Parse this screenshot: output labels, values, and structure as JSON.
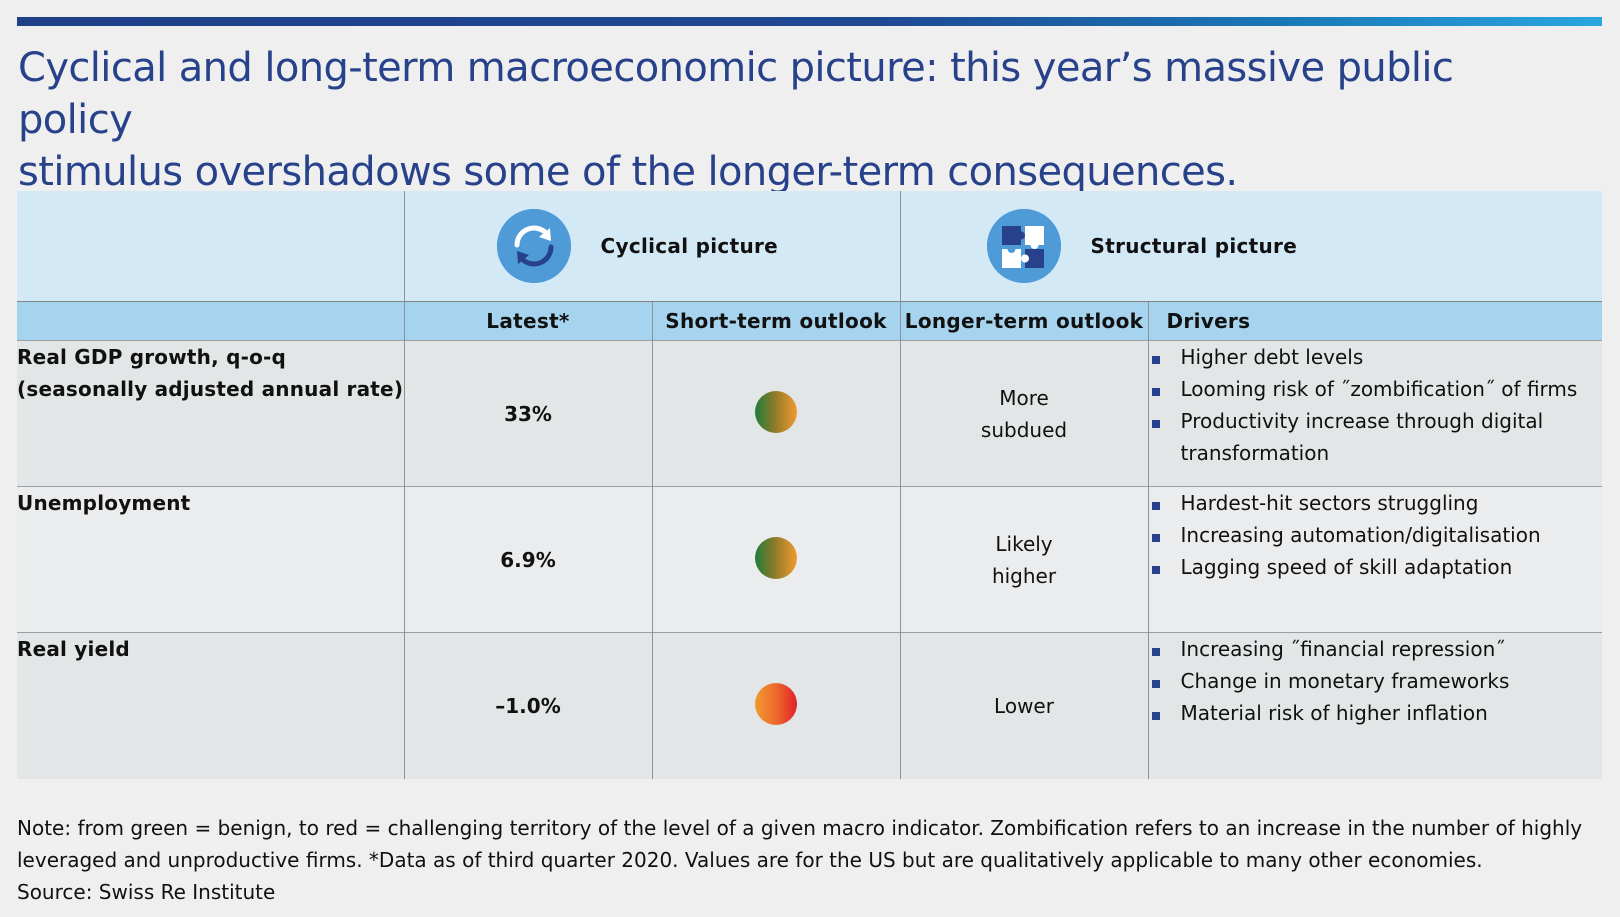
{
  "title_line1": "Cyclical and long-term macroeconomic picture: this year’s massive public policy",
  "title_line2": "stimulus overshadows some of the longer-term consequences.",
  "groups": {
    "cyclical": {
      "label": "Cyclical picture",
      "icon": "refresh-cycle-icon"
    },
    "structural": {
      "label": "Structural picture",
      "icon": "puzzle-pieces-icon"
    }
  },
  "columns": {
    "latest": "Latest*",
    "short_term": "Short-term outlook",
    "longer_term": "Longer-term outlook",
    "drivers": "Drivers"
  },
  "rows": [
    {
      "indicator_line1": "Real GDP growth, q-o-q",
      "indicator_line2": "(seasonally adjusted annual rate)",
      "latest": "33%",
      "short_term_color": "green-to-orange",
      "longer_line1": "More",
      "longer_line2": "subdued",
      "drivers": [
        "Higher debt levels",
        "Looming risk of ˝zombification˝ of firms",
        "Productivity increase through digital",
        "transformation"
      ]
    },
    {
      "indicator_line1": "Unemployment",
      "indicator_line2": "",
      "latest": "6.9%",
      "short_term_color": "green-to-orange",
      "longer_line1": "Likely",
      "longer_line2": "higher",
      "drivers": [
        "Hardest-hit sectors struggling",
        "Increasing automation/digitalisation",
        "Lagging speed of skill adaptation"
      ]
    },
    {
      "indicator_line1": "Real yield",
      "indicator_line2": "",
      "latest": "–1.0%",
      "short_term_color": "orange-to-red",
      "longer_line1": "Lower",
      "longer_line2": "",
      "drivers": [
        "Increasing ˝financial repression˝",
        "Change in monetary frameworks",
        "Material risk of higher inflation"
      ]
    }
  ],
  "note_line1": "Note: from green = benign, to red = challenging territory of the level of a given macro indicator. Zombification refers to an increase in the number of highly",
  "note_line2": "leveraged and unproductive firms. *Data as of third quarter 2020. Values are for the US but are qualitatively applicable to many other economies.",
  "source": "Source: Swiss Re Institute",
  "colors": {
    "title": "#27428a",
    "header_light": "#d3e9f6",
    "header_mid": "#a6d4ef",
    "bullet": "#27428a"
  }
}
